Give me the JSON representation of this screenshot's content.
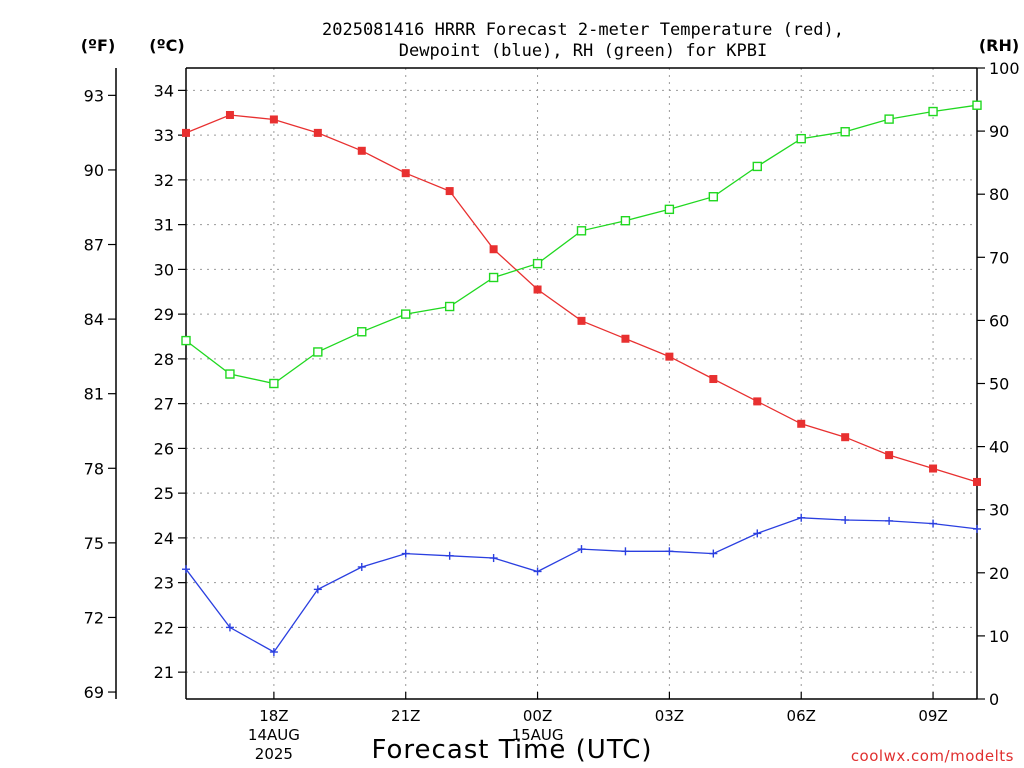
{
  "chart_data": {
    "type": "line",
    "title_lines": [
      "2025081416 HRRR Forecast 2-meter Temperature (red),",
      "Dewpoint (blue), RH (green) for KPBI"
    ],
    "xlabel": "Forecast Time (UTC)",
    "credit": "coolwx.com/modelts",
    "x_hours": [
      16,
      17,
      18,
      19,
      20,
      21,
      22,
      23,
      24,
      25,
      26,
      27,
      28,
      29,
      30,
      31,
      32,
      33,
      34
    ],
    "xlim": [
      16,
      34
    ],
    "x_ticks": [
      {
        "hour": 18,
        "lines": [
          "18Z",
          "14AUG",
          "2025"
        ]
      },
      {
        "hour": 21,
        "lines": [
          "21Z"
        ]
      },
      {
        "hour": 24,
        "lines": [
          "00Z",
          "15AUG"
        ]
      },
      {
        "hour": 27,
        "lines": [
          "03Z"
        ]
      },
      {
        "hour": 30,
        "lines": [
          "06Z"
        ]
      },
      {
        "hour": 33,
        "lines": [
          "09Z"
        ]
      }
    ],
    "axes": {
      "fahrenheit": {
        "unit_label": "(ºF)",
        "ticks": [
          69,
          72,
          75,
          78,
          81,
          84,
          87,
          90,
          93
        ]
      },
      "celsius": {
        "unit_label": "(ºC)",
        "ticks": [
          21,
          22,
          23,
          24,
          25,
          26,
          27,
          28,
          29,
          30,
          31,
          32,
          33,
          34
        ],
        "ylim": [
          20.4,
          34.5
        ]
      },
      "rh": {
        "unit_label": "(RH)",
        "ticks": [
          0,
          10,
          20,
          30,
          40,
          50,
          60,
          70,
          80,
          90,
          100
        ],
        "ylim": [
          0,
          100
        ]
      }
    },
    "grid": true,
    "series": [
      {
        "color": "#e83030",
        "marker": "filled-square",
        "axis": "celsius",
        "values": [
          33.05,
          33.45,
          33.35,
          33.05,
          32.65,
          32.15,
          31.75,
          30.45,
          29.55,
          28.85,
          28.45,
          28.05,
          27.55,
          27.05,
          26.55,
          26.25,
          25.85,
          25.55,
          25.25
        ]
      },
      {
        "color": "#2a3fe0",
        "marker": "plus",
        "axis": "celsius",
        "values": [
          23.3,
          22.0,
          21.45,
          22.85,
          23.35,
          23.65,
          23.6,
          23.55,
          23.25,
          23.75,
          23.7,
          23.7,
          23.65,
          24.1,
          24.45,
          24.4,
          24.38,
          24.32,
          24.2
        ]
      },
      {
        "color": "#20d820",
        "marker": "open-square",
        "axis": "rh",
        "values": [
          56.8,
          51.5,
          50.0,
          55.0,
          58.2,
          61.0,
          62.2,
          66.8,
          69.0,
          74.2,
          75.8,
          77.6,
          79.6,
          84.4,
          88.8,
          89.9,
          91.9,
          93.1,
          94.1
        ]
      }
    ]
  }
}
